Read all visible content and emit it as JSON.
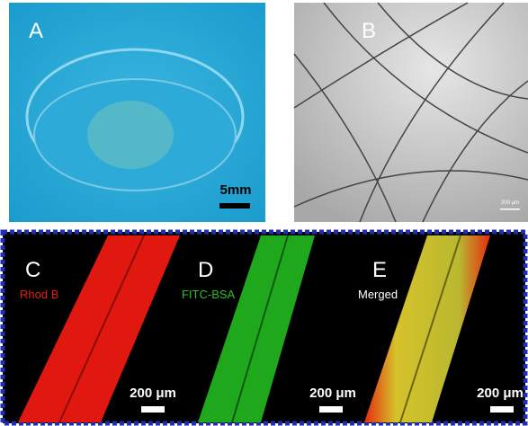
{
  "panels": [
    {
      "label": "A",
      "scale_bar": "5mm"
    },
    {
      "label": "B",
      "scale_bar": "200 μm"
    },
    {
      "label": "C",
      "caption": "Rhod B",
      "scale_bar": "200 μm"
    },
    {
      "label": "D",
      "caption": "FITC-BSA",
      "scale_bar": "200 μm"
    },
    {
      "label": "E",
      "caption": "Merged",
      "scale_bar": "200 μm"
    }
  ]
}
